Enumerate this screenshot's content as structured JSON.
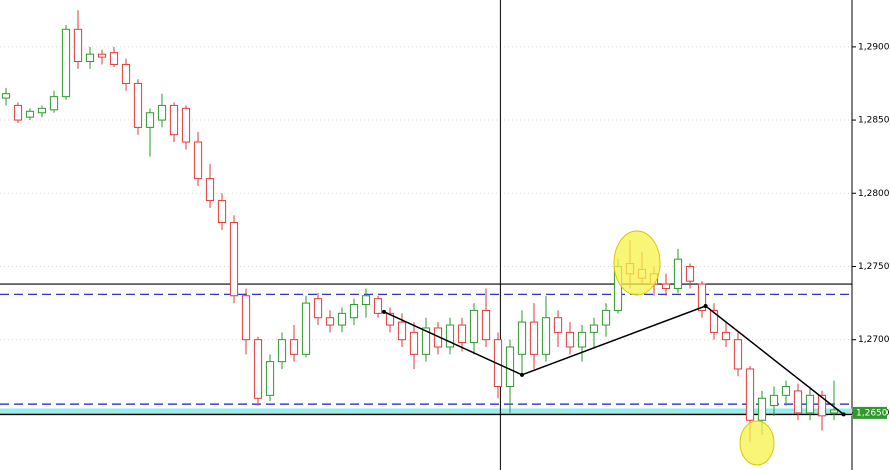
{
  "chart_data": {
    "type": "candlestick",
    "ylim": [
      1.2611,
      1.2932
    ],
    "yticks": [
      {
        "value": 1.265,
        "label": "1,2650"
      },
      {
        "value": 1.27,
        "label": "1,2700"
      },
      {
        "value": 1.275,
        "label": "1,2750"
      },
      {
        "value": 1.28,
        "label": "1,2800"
      },
      {
        "value": 1.285,
        "label": "1,2850"
      },
      {
        "value": 1.29,
        "label": "1,2900"
      }
    ],
    "xlim": [
      -0.5,
      70.5
    ],
    "grid": true,
    "up_color": "#2e9a2e",
    "down_color": "#e03a3a",
    "open": [
      1.2865,
      1.286,
      1.2852,
      1.2855,
      1.2857,
      1.2866,
      1.2912,
      1.289,
      1.2895,
      1.2896,
      1.2888,
      1.2875,
      1.2845,
      1.285,
      1.286,
      1.2858,
      1.2835,
      1.281,
      1.2795,
      1.278,
      1.273,
      1.27,
      1.2662,
      1.2685,
      1.27,
      1.269,
      1.2728,
      1.2715,
      1.271,
      1.2715,
      1.2724,
      1.2728,
      1.2718,
      1.2712,
      1.2705,
      1.269,
      1.2708,
      1.2695,
      1.271,
      1.2698,
      1.272,
      1.27,
      1.2668,
      1.269,
      1.2712,
      1.269,
      1.2715,
      1.2705,
      1.2695,
      1.2705,
      1.271,
      1.272,
      1.2752,
      1.2748,
      1.2745,
      1.2738,
      1.2735,
      1.275,
      1.2738,
      1.272,
      1.2705,
      1.27,
      1.268,
      1.2645,
      1.2655,
      1.2662,
      1.2665,
      1.265,
      1.2662,
      1.265
    ],
    "high": [
      1.2872,
      1.2862,
      1.2858,
      1.286,
      1.287,
      1.2915,
      1.2925,
      1.29,
      1.2898,
      1.29,
      1.2892,
      1.2878,
      1.2858,
      1.2868,
      1.2862,
      1.286,
      1.2842,
      1.282,
      1.28,
      1.2785,
      1.2735,
      1.2702,
      1.269,
      1.2705,
      1.271,
      1.273,
      1.2732,
      1.272,
      1.2722,
      1.2728,
      1.2735,
      1.273,
      1.2722,
      1.2718,
      1.2712,
      1.2715,
      1.2712,
      1.2715,
      1.2715,
      1.2725,
      1.2735,
      1.2705,
      1.27,
      1.272,
      1.2725,
      1.273,
      1.272,
      1.2712,
      1.271,
      1.2715,
      1.2725,
      1.2755,
      1.2768,
      1.276,
      1.275,
      1.2745,
      1.2762,
      1.2752,
      1.274,
      1.2725,
      1.2712,
      1.2705,
      1.2682,
      1.2665,
      1.2668,
      1.2672,
      1.267,
      1.2668,
      1.2665,
      1.2672
    ],
    "low": [
      1.286,
      1.2848,
      1.285,
      1.2852,
      1.2855,
      1.2864,
      1.2885,
      1.2885,
      1.2888,
      1.2886,
      1.287,
      1.284,
      1.2825,
      1.2845,
      1.2835,
      1.283,
      1.2805,
      1.279,
      1.2775,
      1.2725,
      1.269,
      1.2655,
      1.2658,
      1.268,
      1.2685,
      1.2688,
      1.271,
      1.2705,
      1.2705,
      1.271,
      1.2715,
      1.2715,
      1.2705,
      1.2695,
      1.268,
      1.2685,
      1.269,
      1.269,
      1.2692,
      1.269,
      1.2695,
      1.266,
      1.265,
      1.2675,
      1.268,
      1.2685,
      1.2695,
      1.269,
      1.2685,
      1.2695,
      1.2702,
      1.2718,
      1.2735,
      1.2738,
      1.273,
      1.273,
      1.2732,
      1.2735,
      1.2715,
      1.27,
      1.2695,
      1.2675,
      1.263,
      1.2635,
      1.2648,
      1.2655,
      1.2645,
      1.2645,
      1.2638,
      1.2645
    ],
    "close": [
      1.2868,
      1.285,
      1.2856,
      1.2858,
      1.2866,
      1.2912,
      1.289,
      1.2895,
      1.2893,
      1.2888,
      1.2875,
      1.2845,
      1.2855,
      1.286,
      1.284,
      1.2835,
      1.281,
      1.2795,
      1.278,
      1.273,
      1.27,
      1.266,
      1.2685,
      1.27,
      1.269,
      1.2725,
      1.2715,
      1.271,
      1.2718,
      1.2724,
      1.273,
      1.2718,
      1.271,
      1.27,
      1.269,
      1.2708,
      1.2695,
      1.271,
      1.2698,
      1.272,
      1.27,
      1.2668,
      1.2695,
      1.2712,
      1.269,
      1.2715,
      1.2705,
      1.2695,
      1.2705,
      1.271,
      1.272,
      1.275,
      1.2745,
      1.2742,
      1.2738,
      1.2735,
      1.2755,
      1.274,
      1.272,
      1.2705,
      1.27,
      1.268,
      1.2645,
      1.266,
      1.2662,
      1.2668,
      1.265,
      1.2662,
      1.2648,
      1.2652
    ],
    "hlines": [
      {
        "value": 1.2738,
        "color": "#000000",
        "dashed": false
      },
      {
        "value": 1.2731,
        "color": "#1a1ad0",
        "dashed": true
      },
      {
        "value": 1.2656,
        "color": "#1a1ad0",
        "dashed": true
      },
      {
        "value": 1.2649,
        "color": "#000000",
        "dashed": false
      }
    ],
    "band": [
      1.2648,
      1.2653
    ],
    "band_color": "#8ff0f0",
    "crosshair_x": 41.2,
    "trend": {
      "x": [
        31.5,
        43,
        58.3,
        69.8
      ],
      "y": [
        1.2719,
        1.2676,
        1.2723,
        1.2649
      ]
    },
    "last_price": {
      "value": 1.265,
      "label": "1,2650"
    }
  }
}
